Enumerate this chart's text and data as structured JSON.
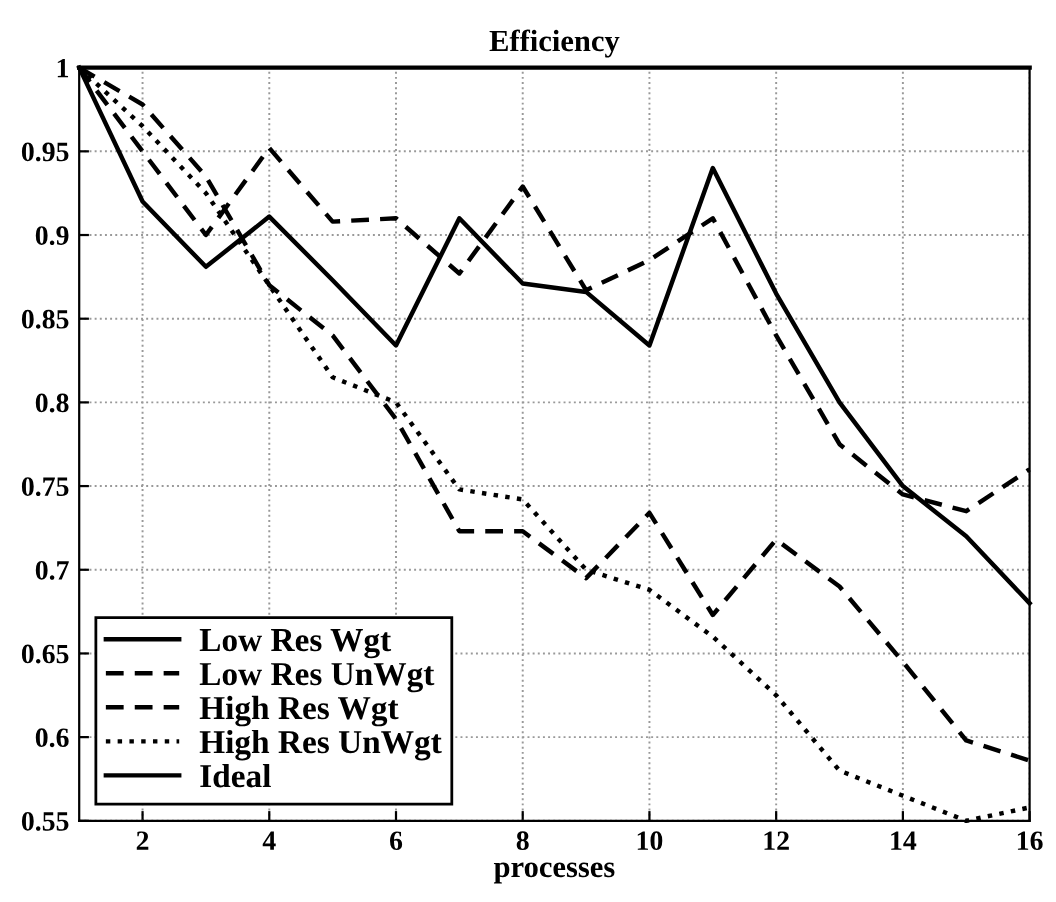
{
  "chart_data": {
    "type": "line",
    "title": "Efficiency",
    "xlabel": "processes",
    "x": [
      1,
      2,
      3,
      4,
      5,
      6,
      7,
      8,
      9,
      10,
      11,
      12,
      13,
      14,
      15,
      16
    ],
    "series": [
      {
        "name": "Low Res Wgt",
        "color": "#000000",
        "line_style": "solid",
        "values": [
          1,
          0.92,
          0.881,
          0.911,
          0.873,
          0.834,
          0.91,
          0.871,
          0.866,
          0.834,
          0.94,
          0.865,
          0.8,
          0.75,
          0.72,
          0.68
        ]
      },
      {
        "name": "Low Res UnWgt",
        "color": "#000000",
        "line_style": "dashed",
        "values": [
          1,
          0.95,
          0.9,
          0.952,
          0.908,
          0.91,
          0.877,
          0.929,
          0.867,
          0.885,
          0.91,
          0.84,
          0.775,
          0.745,
          0.735,
          0.76
        ]
      },
      {
        "name": "High Res Wgt",
        "color": "#000000",
        "line_style": "dashed",
        "values": [
          1,
          0.978,
          0.935,
          0.87,
          0.84,
          0.79,
          0.723,
          0.723,
          0.695,
          0.734,
          0.673,
          0.718,
          0.69,
          0.645,
          0.598,
          0.586
        ]
      },
      {
        "name": "High Res UnWgt",
        "color": "#000000",
        "line_style": "dotted",
        "values": [
          1,
          0.965,
          0.925,
          0.87,
          0.815,
          0.8,
          0.748,
          0.742,
          0.7,
          0.688,
          0.66,
          0.625,
          0.58,
          0.565,
          0.55,
          0.558
        ]
      },
      {
        "name": "Ideal",
        "color": "#000000",
        "line_style": "solid",
        "values": [
          1,
          1,
          1,
          1,
          1,
          1,
          1,
          1,
          1,
          1,
          1,
          1,
          1,
          1,
          1,
          1
        ]
      }
    ],
    "xlim": [
      1,
      16
    ],
    "ylim": [
      0.55,
      1
    ],
    "xticks": [
      2,
      4,
      6,
      8,
      10,
      12,
      14,
      16
    ],
    "yticks": [
      0.55,
      0.6,
      0.65,
      0.7,
      0.75,
      0.8,
      0.85,
      0.9,
      0.95,
      1
    ],
    "grid": true,
    "legend": "bottom left",
    "marker": "none"
  }
}
